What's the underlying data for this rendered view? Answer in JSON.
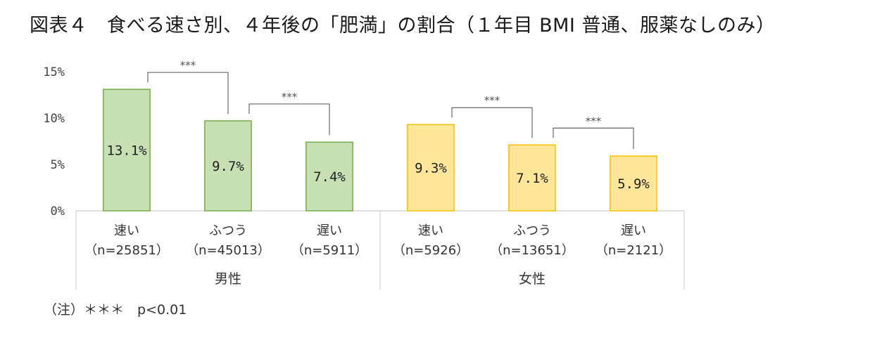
{
  "title": "図表４　食べる速さ別、４年後の「肥満」の割合（１年目 BMI 普通、服薬なしのみ）",
  "note": "（注）＊＊＊　p<0.01",
  "chart_data": {
    "type": "bar",
    "ylim": [
      0,
      15
    ],
    "ytick_labels": [
      "0%",
      "5%",
      "10%",
      "15%"
    ],
    "yticks": [
      0,
      5,
      10,
      15
    ],
    "grid": false,
    "groups": [
      {
        "label": "男性",
        "color": "#c6e0b4",
        "edge": "#70ad47",
        "categories": [
          {
            "label": "速い",
            "n": "（n=25851）",
            "value": 13.1,
            "value_label": "13.1%"
          },
          {
            "label": "ふつう",
            "n": "（n=45013）",
            "value": 9.7,
            "value_label": "9.7%"
          },
          {
            "label": "遅い",
            "n": "（n=5911）",
            "value": 7.4,
            "value_label": "7.4%"
          }
        ]
      },
      {
        "label": "女性",
        "color": "#ffe699",
        "edge": "#f4c000",
        "categories": [
          {
            "label": "速い",
            "n": "（n=5926）",
            "value": 9.3,
            "value_label": "9.3%"
          },
          {
            "label": "ふつう",
            "n": "（n=13651）",
            "value": 7.1,
            "value_label": "7.1%"
          },
          {
            "label": "遅い",
            "n": "（n=2121）",
            "value": 5.9,
            "value_label": "5.9%"
          }
        ]
      }
    ],
    "significance": [
      {
        "group": 0,
        "from": 0,
        "to": 1,
        "label": "***"
      },
      {
        "group": 0,
        "from": 1,
        "to": 2,
        "label": "***"
      },
      {
        "group": 1,
        "from": 0,
        "to": 1,
        "label": "***"
      },
      {
        "group": 1,
        "from": 1,
        "to": 2,
        "label": "***"
      }
    ]
  }
}
